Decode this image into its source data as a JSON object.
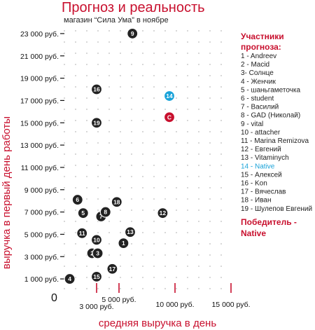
{
  "title": "Прогноз и реальность",
  "subtitle": "магазин “Сила Ума” в ноябре",
  "colors": {
    "accent": "#c8102e",
    "point": "#222222",
    "winner": "#1aa3d9",
    "reality": "#c8102e"
  },
  "chart_data": {
    "type": "scatter",
    "xlabel": "средняя выручка в день",
    "ylabel": "выручка в первый день работы",
    "origin_label": "0",
    "xlim": [
      0,
      15000
    ],
    "ylim": [
      0,
      24000
    ],
    "x_ticks": [
      {
        "value": 3000,
        "label": "3 000 руб."
      },
      {
        "value": 5000,
        "label": "5 000 руб."
      },
      {
        "value": 10000,
        "label": "10 000 руб."
      },
      {
        "value": 15000,
        "label": "15 000 руб."
      }
    ],
    "y_ticks": [
      {
        "value": 1000,
        "label": "1 000 руб."
      },
      {
        "value": 3000,
        "label": "3 000 руб."
      },
      {
        "value": 5000,
        "label": "5 000 руб."
      },
      {
        "value": 7000,
        "label": "7 000 руб."
      },
      {
        "value": 9000,
        "label": "9 000 руб."
      },
      {
        "value": 11000,
        "label": "11 000 руб."
      },
      {
        "value": 13000,
        "label": "13 000 руб."
      },
      {
        "value": 15000,
        "label": "15 000 руб."
      },
      {
        "value": 17000,
        "label": "17 000 руб."
      },
      {
        "value": 19000,
        "label": "19 000 руб."
      },
      {
        "value": 21000,
        "label": "21 000 руб."
      },
      {
        "value": 23000,
        "label": "23 000 руб."
      }
    ],
    "points": [
      {
        "label": "1",
        "x": 5400,
        "y": 4200,
        "kind": "forecast"
      },
      {
        "label": "2",
        "x": 2600,
        "y": 3300,
        "kind": "forecast"
      },
      {
        "label": "3",
        "x": 3100,
        "y": 3300,
        "kind": "forecast"
      },
      {
        "label": "4",
        "x": 600,
        "y": 1000,
        "kind": "forecast"
      },
      {
        "label": "5",
        "x": 1800,
        "y": 6900,
        "kind": "forecast"
      },
      {
        "label": "6",
        "x": 1300,
        "y": 8100,
        "kind": "forecast"
      },
      {
        "label": "7",
        "x": 3400,
        "y": 6600,
        "kind": "forecast"
      },
      {
        "label": "8",
        "x": 3800,
        "y": 7000,
        "kind": "forecast"
      },
      {
        "label": "9",
        "x": 6200,
        "y": 23000,
        "kind": "forecast"
      },
      {
        "label": "10",
        "x": 3000,
        "y": 4500,
        "kind": "forecast"
      },
      {
        "label": "11",
        "x": 1700,
        "y": 5100,
        "kind": "forecast"
      },
      {
        "label": "12",
        "x": 8900,
        "y": 6900,
        "kind": "forecast"
      },
      {
        "label": "13",
        "x": 6000,
        "y": 5200,
        "kind": "forecast"
      },
      {
        "label": "14",
        "x": 9500,
        "y": 17400,
        "kind": "winner"
      },
      {
        "label": "15",
        "x": 3000,
        "y": 1200,
        "kind": "forecast"
      },
      {
        "label": "16",
        "x": 3000,
        "y": 18000,
        "kind": "forecast"
      },
      {
        "label": "17",
        "x": 4400,
        "y": 1900,
        "kind": "forecast"
      },
      {
        "label": "18",
        "x": 4800,
        "y": 7900,
        "kind": "forecast"
      },
      {
        "label": "19",
        "x": 3000,
        "y": 15000,
        "kind": "forecast"
      },
      {
        "label": "С",
        "x": 9500,
        "y": 15500,
        "kind": "reality"
      }
    ]
  },
  "legend": {
    "title_line1": "Участники",
    "title_line2": "прогноза:",
    "items": [
      {
        "text": "1 - Andreev",
        "winner": false
      },
      {
        "text": "2 - Macid",
        "winner": false
      },
      {
        "text": "3- Солнце",
        "winner": false
      },
      {
        "text": "4 - Женчик",
        "winner": false
      },
      {
        "text": "5 - шаньгаметочка",
        "winner": false
      },
      {
        "text": "6 - student",
        "winner": false
      },
      {
        "text": "7 - Василий",
        "winner": false
      },
      {
        "text": "8 - GAD (Николай)",
        "winner": false
      },
      {
        "text": "9 - vital",
        "winner": false
      },
      {
        "text": "10 - attacher",
        "winner": false
      },
      {
        "text": "11 - Marina Remizova",
        "winner": false
      },
      {
        "text": "12 - Евгений",
        "winner": false
      },
      {
        "text": "13 - Vitaminych",
        "winner": false
      },
      {
        "text": "14 - Native",
        "winner": true
      },
      {
        "text": "15 - Алексей",
        "winner": false
      },
      {
        "text": "16 - Kon",
        "winner": false
      },
      {
        "text": "17 - Вячеслав",
        "winner": false
      },
      {
        "text": "18 - Иван",
        "winner": false
      },
      {
        "text": "19 - Шулепов Евгений",
        "winner": false
      }
    ],
    "winner_line1": "Победитель -",
    "winner_line2": "Native"
  }
}
